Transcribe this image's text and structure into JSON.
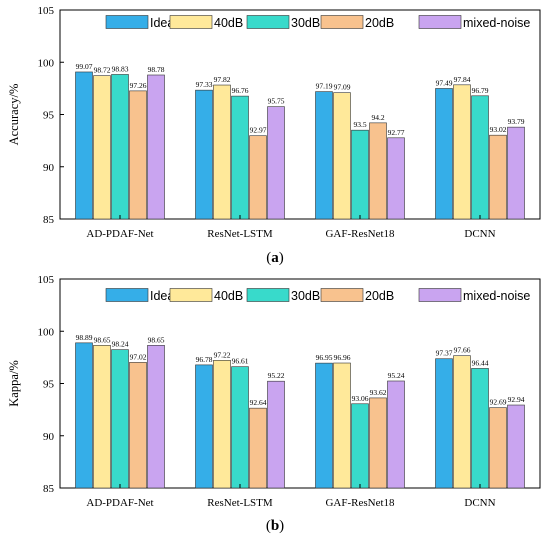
{
  "colors": {
    "Ideal": "#35AEE8",
    "40dB": "#FFE99A",
    "30dB": "#38DACB",
    "20dB": "#F8C28E",
    "mixed-noise": "#C9A4F0"
  },
  "chart_data": [
    {
      "type": "bar",
      "panel_label": "(a)",
      "ylabel": "Accuracy/%",
      "ylim": [
        85,
        105
      ],
      "yticks": [
        "85",
        "90",
        "95",
        "100",
        "105"
      ],
      "grid": false,
      "legend_position": "top",
      "categories": [
        "AD-PDAF-Net",
        "ResNet-LSTM",
        "GAF-ResNet18",
        "DCNN"
      ],
      "series": [
        {
          "name": "Ideal",
          "values": [
            99.07,
            97.33,
            97.19,
            97.49
          ],
          "labels": [
            "99.07",
            "97.33",
            "97.19",
            "97.49"
          ]
        },
        {
          "name": "40dB",
          "values": [
            98.72,
            97.82,
            97.09,
            97.84
          ],
          "labels": [
            "98.72",
            "97.82",
            "97.09",
            "97.84"
          ]
        },
        {
          "name": "30dB",
          "values": [
            98.83,
            96.76,
            93.5,
            96.79
          ],
          "labels": [
            "98.83",
            "96.76",
            "93.5",
            "96.79"
          ]
        },
        {
          "name": "20dB",
          "values": [
            97.26,
            92.97,
            94.2,
            93.02
          ],
          "labels": [
            "97.26",
            "92.97",
            "94.2",
            "93.02"
          ]
        },
        {
          "name": "mixed-noise",
          "values": [
            98.78,
            95.75,
            92.77,
            93.79
          ],
          "labels": [
            "98.78",
            "95.75",
            "92.77",
            "93.79"
          ]
        }
      ]
    },
    {
      "type": "bar",
      "panel_label": "(b)",
      "ylabel": "Kappa/%",
      "ylim": [
        85,
        105
      ],
      "yticks": [
        "85",
        "90",
        "95",
        "100",
        "105"
      ],
      "grid": false,
      "legend_position": "top",
      "categories": [
        "AD-PDAF-Net",
        "ResNet-LSTM",
        "GAF-ResNet18",
        "DCNN"
      ],
      "series": [
        {
          "name": "Ideal",
          "values": [
            98.89,
            96.78,
            96.95,
            97.37
          ],
          "labels": [
            "98.89",
            "96.78",
            "96.95",
            "97.37"
          ]
        },
        {
          "name": "40dB",
          "values": [
            98.65,
            97.22,
            96.96,
            97.66
          ],
          "labels": [
            "98.65",
            "97.22",
            "96.96",
            "97.66"
          ]
        },
        {
          "name": "30dB",
          "values": [
            98.24,
            96.61,
            93.06,
            96.44
          ],
          "labels": [
            "98.24",
            "96.61",
            "93.06",
            "96.44"
          ]
        },
        {
          "name": "20dB",
          "values": [
            97.02,
            92.64,
            93.62,
            92.69
          ],
          "labels": [
            "97.02",
            "92.64",
            "93.62",
            "92.69"
          ]
        },
        {
          "name": "mixed-noise",
          "values": [
            98.65,
            95.22,
            95.24,
            92.94
          ],
          "labels": [
            "98.65",
            "95.22",
            "95.24",
            "92.94"
          ]
        }
      ]
    }
  ]
}
